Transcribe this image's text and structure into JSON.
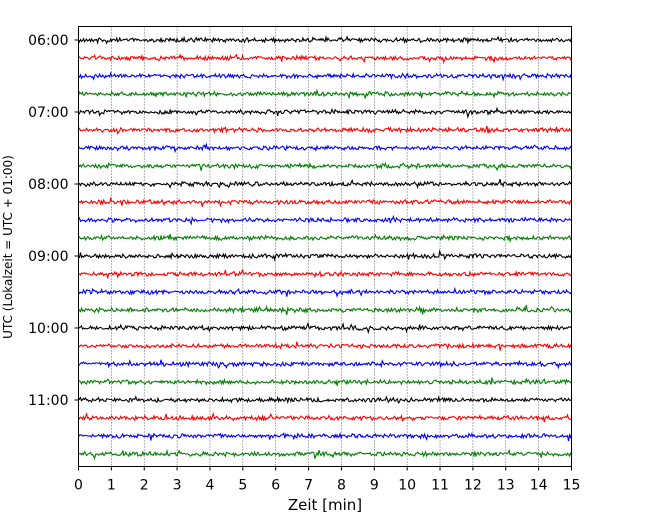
{
  "chart_data": {
    "type": "line",
    "title": "",
    "xlabel": "Zeit  [min]",
    "ylabel": "UTC (Lokalzeit = UTC + 01:00)",
    "xlim": [
      0,
      15
    ],
    "x_ticks": [
      "0",
      "1",
      "2",
      "3",
      "4",
      "5",
      "6",
      "7",
      "8",
      "9",
      "10",
      "11",
      "12",
      "13",
      "14",
      "15"
    ],
    "y_ticks": [
      "06:00",
      "07:00",
      "08:00",
      "09:00",
      "10:00",
      "11:00"
    ],
    "grid": {
      "x": true,
      "y": false,
      "style": "dotted"
    },
    "trace_interval_min": 15,
    "first_trace": "06:00",
    "last_trace": "11:45",
    "colors": [
      "#000000",
      "#ff0000",
      "#0000ff",
      "#008000"
    ],
    "series": [
      {
        "start": "06:00",
        "color": "#000000"
      },
      {
        "start": "06:15",
        "color": "#ff0000"
      },
      {
        "start": "06:30",
        "color": "#0000ff"
      },
      {
        "start": "06:45",
        "color": "#008000"
      },
      {
        "start": "07:00",
        "color": "#000000"
      },
      {
        "start": "07:15",
        "color": "#ff0000"
      },
      {
        "start": "07:30",
        "color": "#0000ff"
      },
      {
        "start": "07:45",
        "color": "#008000"
      },
      {
        "start": "08:00",
        "color": "#000000"
      },
      {
        "start": "08:15",
        "color": "#ff0000"
      },
      {
        "start": "08:30",
        "color": "#0000ff"
      },
      {
        "start": "08:45",
        "color": "#008000"
      },
      {
        "start": "09:00",
        "color": "#000000"
      },
      {
        "start": "09:15",
        "color": "#ff0000"
      },
      {
        "start": "09:30",
        "color": "#0000ff"
      },
      {
        "start": "09:45",
        "color": "#008000"
      },
      {
        "start": "10:00",
        "color": "#000000"
      },
      {
        "start": "10:15",
        "color": "#ff0000"
      },
      {
        "start": "10:30",
        "color": "#0000ff"
      },
      {
        "start": "10:45",
        "color": "#008000"
      },
      {
        "start": "11:00",
        "color": "#000000"
      },
      {
        "start": "11:15",
        "color": "#ff0000"
      },
      {
        "start": "11:30",
        "color": "#0000ff"
      },
      {
        "start": "11:45",
        "color": "#008000"
      }
    ]
  }
}
